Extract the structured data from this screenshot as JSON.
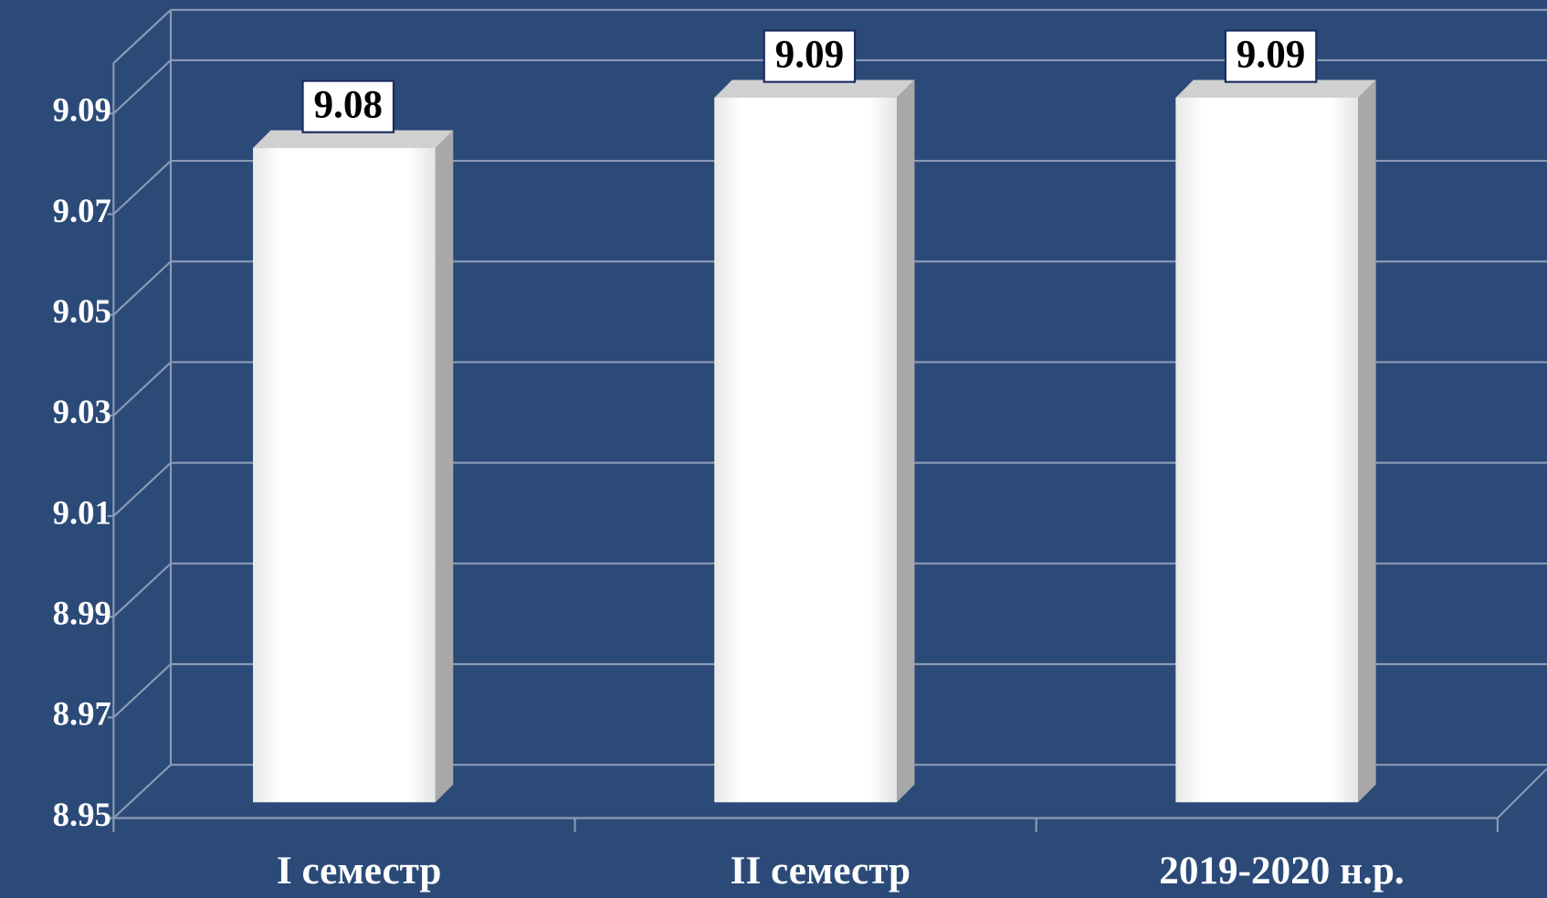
{
  "chart_data": {
    "type": "bar",
    "categories": [
      "I семестр",
      "II семестр",
      "2019-2020 н.р."
    ],
    "values": [
      9.08,
      9.09,
      9.09
    ],
    "color": "#ffffff",
    "ylim": [
      8.95,
      9.1
    ],
    "yticks": [
      8.95,
      8.97,
      8.99,
      9.01,
      9.03,
      9.05,
      9.07,
      9.09
    ],
    "grid": true
  }
}
